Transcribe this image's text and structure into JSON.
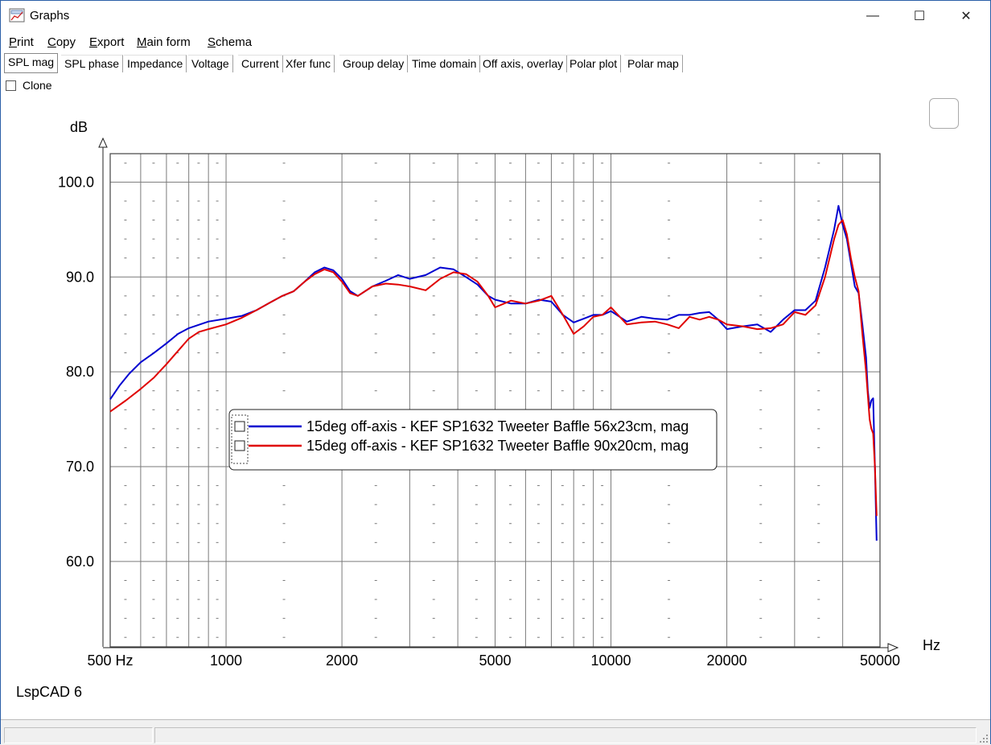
{
  "window": {
    "title": "Graphs",
    "icon": "graph-app-icon",
    "controls": [
      "minimize-icon",
      "maximize-icon",
      "close-icon"
    ]
  },
  "menu": [
    {
      "label": "Print",
      "mnemonic": "P"
    },
    {
      "label": "Copy",
      "mnemonic": "C"
    },
    {
      "label": "Export",
      "mnemonic": "E"
    },
    {
      "label": "Main form",
      "mnemonic": "M"
    },
    {
      "label": "Schema",
      "mnemonic": "S"
    }
  ],
  "tabs": [
    {
      "label": "SPL mag",
      "active": true
    },
    {
      "label": "SPL phase"
    },
    {
      "label": "Impedance"
    },
    {
      "label": "Voltage"
    },
    {
      "label": "Current"
    },
    {
      "label": "Xfer func"
    },
    {
      "label": "Group delay"
    },
    {
      "label": "Time domain"
    },
    {
      "label": "Off axis, overlay"
    },
    {
      "label": "Polar plot"
    },
    {
      "label": "Polar map"
    }
  ],
  "clone": {
    "label": "Clone",
    "checked": false
  },
  "brand": "LspCAD 6",
  "chart_data": {
    "type": "line",
    "ylabel": "dB",
    "xlabel": "Hz",
    "x_scale": "log",
    "xlim": [
      500,
      50000
    ],
    "ylim": [
      51,
      103
    ],
    "grid": true,
    "y_ticks": [
      "100.0",
      "90.0",
      "80.0",
      "70.0",
      "60.0"
    ],
    "y_tick_values": [
      100,
      90,
      80,
      70,
      60
    ],
    "x_ticks": [
      "500 Hz",
      "1000",
      "2000",
      "5000",
      "10000",
      "20000",
      "50000"
    ],
    "x_tick_values": [
      500,
      1000,
      2000,
      5000,
      10000,
      20000,
      50000
    ],
    "legend_position": "center-left",
    "series": [
      {
        "name": "15deg off-axis - KEF SP1632 Tweeter Baffle 56x23cm, mag",
        "color": "#0000d0",
        "points": [
          [
            500,
            77.1
          ],
          [
            530,
            78.6
          ],
          [
            560,
            79.8
          ],
          [
            600,
            81.0
          ],
          [
            650,
            82.0
          ],
          [
            700,
            83.0
          ],
          [
            750,
            84.0
          ],
          [
            800,
            84.6
          ],
          [
            900,
            85.3
          ],
          [
            1000,
            85.6
          ],
          [
            1100,
            85.9
          ],
          [
            1200,
            86.5
          ],
          [
            1300,
            87.3
          ],
          [
            1400,
            88.0
          ],
          [
            1500,
            88.5
          ],
          [
            1600,
            89.5
          ],
          [
            1700,
            90.5
          ],
          [
            1800,
            91.0
          ],
          [
            1900,
            90.7
          ],
          [
            2000,
            89.8
          ],
          [
            2100,
            88.5
          ],
          [
            2200,
            88.0
          ],
          [
            2400,
            89.0
          ],
          [
            2600,
            89.6
          ],
          [
            2800,
            90.2
          ],
          [
            3000,
            89.8
          ],
          [
            3300,
            90.2
          ],
          [
            3600,
            91.0
          ],
          [
            3900,
            90.8
          ],
          [
            4200,
            90.0
          ],
          [
            4500,
            89.2
          ],
          [
            4800,
            88.0
          ],
          [
            5000,
            87.6
          ],
          [
            5500,
            87.2
          ],
          [
            6000,
            87.2
          ],
          [
            6500,
            87.6
          ],
          [
            7000,
            87.4
          ],
          [
            7500,
            86.0
          ],
          [
            8000,
            85.2
          ],
          [
            8500,
            85.6
          ],
          [
            9000,
            86.0
          ],
          [
            9500,
            86.0
          ],
          [
            10000,
            86.4
          ],
          [
            11000,
            85.3
          ],
          [
            12000,
            85.8
          ],
          [
            13000,
            85.6
          ],
          [
            14000,
            85.5
          ],
          [
            15000,
            86.0
          ],
          [
            16000,
            86.0
          ],
          [
            17000,
            86.2
          ],
          [
            18000,
            86.3
          ],
          [
            19000,
            85.5
          ],
          [
            20000,
            84.5
          ],
          [
            22000,
            84.8
          ],
          [
            24000,
            85.0
          ],
          [
            26000,
            84.2
          ],
          [
            28000,
            85.5
          ],
          [
            30000,
            86.5
          ],
          [
            32000,
            86.5
          ],
          [
            34000,
            87.5
          ],
          [
            36000,
            91.0
          ],
          [
            38000,
            95.0
          ],
          [
            39000,
            97.5
          ],
          [
            40000,
            95.5
          ],
          [
            41000,
            94.0
          ],
          [
            42000,
            91.5
          ],
          [
            43000,
            89.0
          ],
          [
            44000,
            88.3
          ],
          [
            45000,
            85.0
          ],
          [
            46000,
            81.5
          ],
          [
            46500,
            78.0
          ],
          [
            47000,
            76.2
          ],
          [
            47500,
            77.0
          ],
          [
            48000,
            77.2
          ],
          [
            48500,
            70.0
          ],
          [
            49000,
            62.2
          ]
        ]
      },
      {
        "name": "15deg off-axis - KEF SP1632 Tweeter Baffle 90x20cm, mag",
        "color": "#e00000",
        "points": [
          [
            500,
            75.8
          ],
          [
            550,
            77.0
          ],
          [
            600,
            78.2
          ],
          [
            650,
            79.4
          ],
          [
            700,
            80.8
          ],
          [
            750,
            82.2
          ],
          [
            800,
            83.5
          ],
          [
            850,
            84.2
          ],
          [
            900,
            84.5
          ],
          [
            1000,
            85.0
          ],
          [
            1100,
            85.7
          ],
          [
            1200,
            86.5
          ],
          [
            1300,
            87.3
          ],
          [
            1400,
            88.0
          ],
          [
            1500,
            88.5
          ],
          [
            1600,
            89.5
          ],
          [
            1700,
            90.3
          ],
          [
            1800,
            90.8
          ],
          [
            1900,
            90.5
          ],
          [
            2000,
            89.5
          ],
          [
            2100,
            88.3
          ],
          [
            2200,
            88.0
          ],
          [
            2400,
            89.0
          ],
          [
            2600,
            89.3
          ],
          [
            2800,
            89.2
          ],
          [
            3000,
            89.0
          ],
          [
            3300,
            88.6
          ],
          [
            3600,
            89.8
          ],
          [
            3900,
            90.5
          ],
          [
            4200,
            90.3
          ],
          [
            4500,
            89.5
          ],
          [
            4800,
            88.0
          ],
          [
            5000,
            86.8
          ],
          [
            5500,
            87.5
          ],
          [
            6000,
            87.2
          ],
          [
            6500,
            87.5
          ],
          [
            7000,
            88.0
          ],
          [
            7500,
            86.0
          ],
          [
            8000,
            84.0
          ],
          [
            8500,
            84.8
          ],
          [
            9000,
            85.8
          ],
          [
            9500,
            86.0
          ],
          [
            10000,
            86.8
          ],
          [
            11000,
            85.0
          ],
          [
            12000,
            85.2
          ],
          [
            13000,
            85.3
          ],
          [
            14000,
            85.0
          ],
          [
            15000,
            84.6
          ],
          [
            16000,
            85.8
          ],
          [
            17000,
            85.5
          ],
          [
            18000,
            85.8
          ],
          [
            19000,
            85.5
          ],
          [
            20000,
            85.0
          ],
          [
            22000,
            84.8
          ],
          [
            24000,
            84.5
          ],
          [
            26000,
            84.6
          ],
          [
            28000,
            85.0
          ],
          [
            30000,
            86.3
          ],
          [
            32000,
            86.0
          ],
          [
            34000,
            87.0
          ],
          [
            36000,
            90.0
          ],
          [
            38000,
            94.0
          ],
          [
            39000,
            95.5
          ],
          [
            40000,
            96.0
          ],
          [
            41000,
            94.5
          ],
          [
            42000,
            92.0
          ],
          [
            43000,
            90.0
          ],
          [
            44000,
            88.5
          ],
          [
            45000,
            84.0
          ],
          [
            46000,
            80.0
          ],
          [
            46500,
            77.5
          ],
          [
            47000,
            75.0
          ],
          [
            47500,
            74.0
          ],
          [
            48000,
            73.5
          ],
          [
            48500,
            70.0
          ],
          [
            49000,
            64.8
          ]
        ]
      }
    ]
  }
}
